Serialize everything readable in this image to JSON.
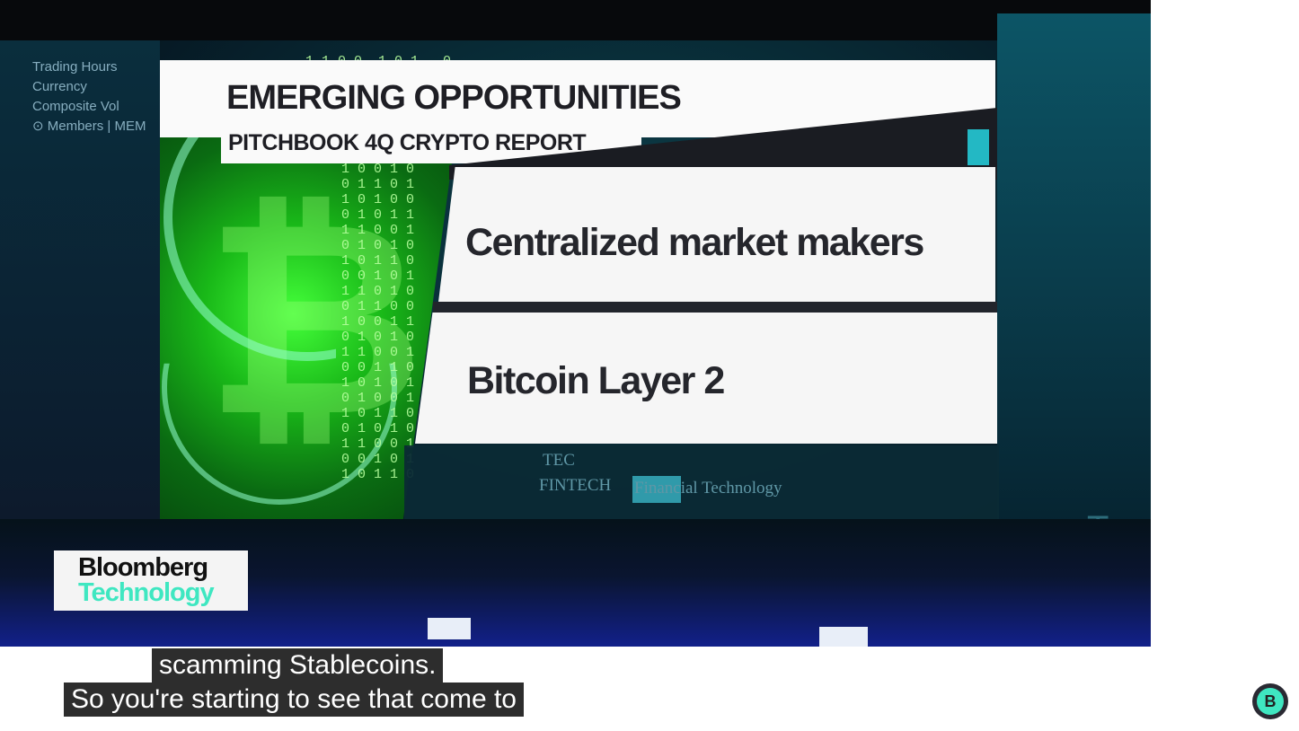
{
  "video": {
    "graphic": {
      "headline": "EMERGING OPPORTUNITIES",
      "subheadline": "PITCHBOOK 4Q CRYPTO REPORT",
      "items": [
        "Centralized market makers",
        "Bitcoin Layer 2"
      ]
    },
    "background_ticker_left": [
      "Trading Hours",
      "Currency",
      "Composite Vol",
      "⊙ Members | MEM"
    ],
    "background_ticker_bottom": [
      "TEC",
      "FINTECH",
      "Financial Technology"
    ],
    "background_wall_text": "Tec",
    "logo": {
      "line1": "Bloomberg",
      "line2": "Technology"
    }
  },
  "captions": [
    "scamming Stablecoins.",
    "So you're starting to see that come to"
  ],
  "channel_button": {
    "letter": "B",
    "icon": "channel-avatar-icon"
  },
  "colors": {
    "accent": "#3fe7c1",
    "caption_bg": "#2d2d2d",
    "panel_green": "#19b818"
  }
}
